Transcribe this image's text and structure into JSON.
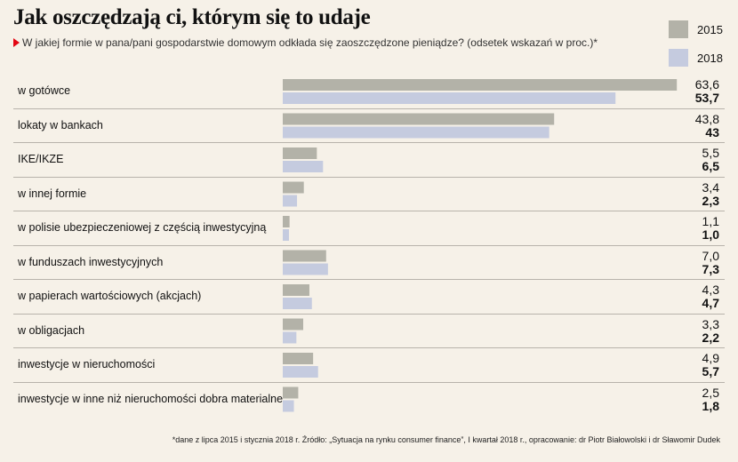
{
  "chart_data": {
    "type": "bar",
    "title": "Jak oszczędzają ci, którym się to udaje",
    "subtitle": "W jakiej formie w pana/pani gospodarstwie domowym odkłada się zaoszczędzone pieniądze? (odsetek wskazań w proc.)*",
    "xlim": [
      0,
      64
    ],
    "categories": [
      "w gotówce",
      "lokaty w bankach",
      "IKE/IKZE",
      "w innej formie",
      "w polisie ubezpieczeniowej z częścią inwestycyjną",
      "w funduszach inwestycyjnych",
      "w papierach wartościowych (akcjach)",
      "w obligacjach",
      "inwestycje w nieruchomości",
      "inwestycje w inne niż nieruchomości dobra materialne"
    ],
    "series": [
      {
        "name": "2015",
        "color": "#b3b2a8",
        "values": [
          63.6,
          43.8,
          5.5,
          3.4,
          1.1,
          7.0,
          4.3,
          3.3,
          4.9,
          2.5
        ],
        "labels": [
          "63,6",
          "43,8",
          "5,5",
          "3,4",
          "1,1",
          "7,0",
          "4,3",
          "3,3",
          "4,9",
          "2,5"
        ]
      },
      {
        "name": "2018",
        "color": "#c5cbdf",
        "values": [
          53.7,
          43,
          6.5,
          2.3,
          1.0,
          7.3,
          4.7,
          2.2,
          5.7,
          1.8
        ],
        "labels": [
          "53,7",
          "43",
          "6,5",
          "2,3",
          "1,0",
          "7,3",
          "4,7",
          "2,2",
          "5,7",
          "1,8"
        ]
      }
    ],
    "legend_position": "top-right",
    "footnote": "*dane z lipca 2015 i stycznia 2018 r.  Źródło: „Sytuacja na rynku consumer finance”, I kwartał 2018 r., opracowanie: dr Piotr Białowolski i dr Sławomir Dudek"
  }
}
